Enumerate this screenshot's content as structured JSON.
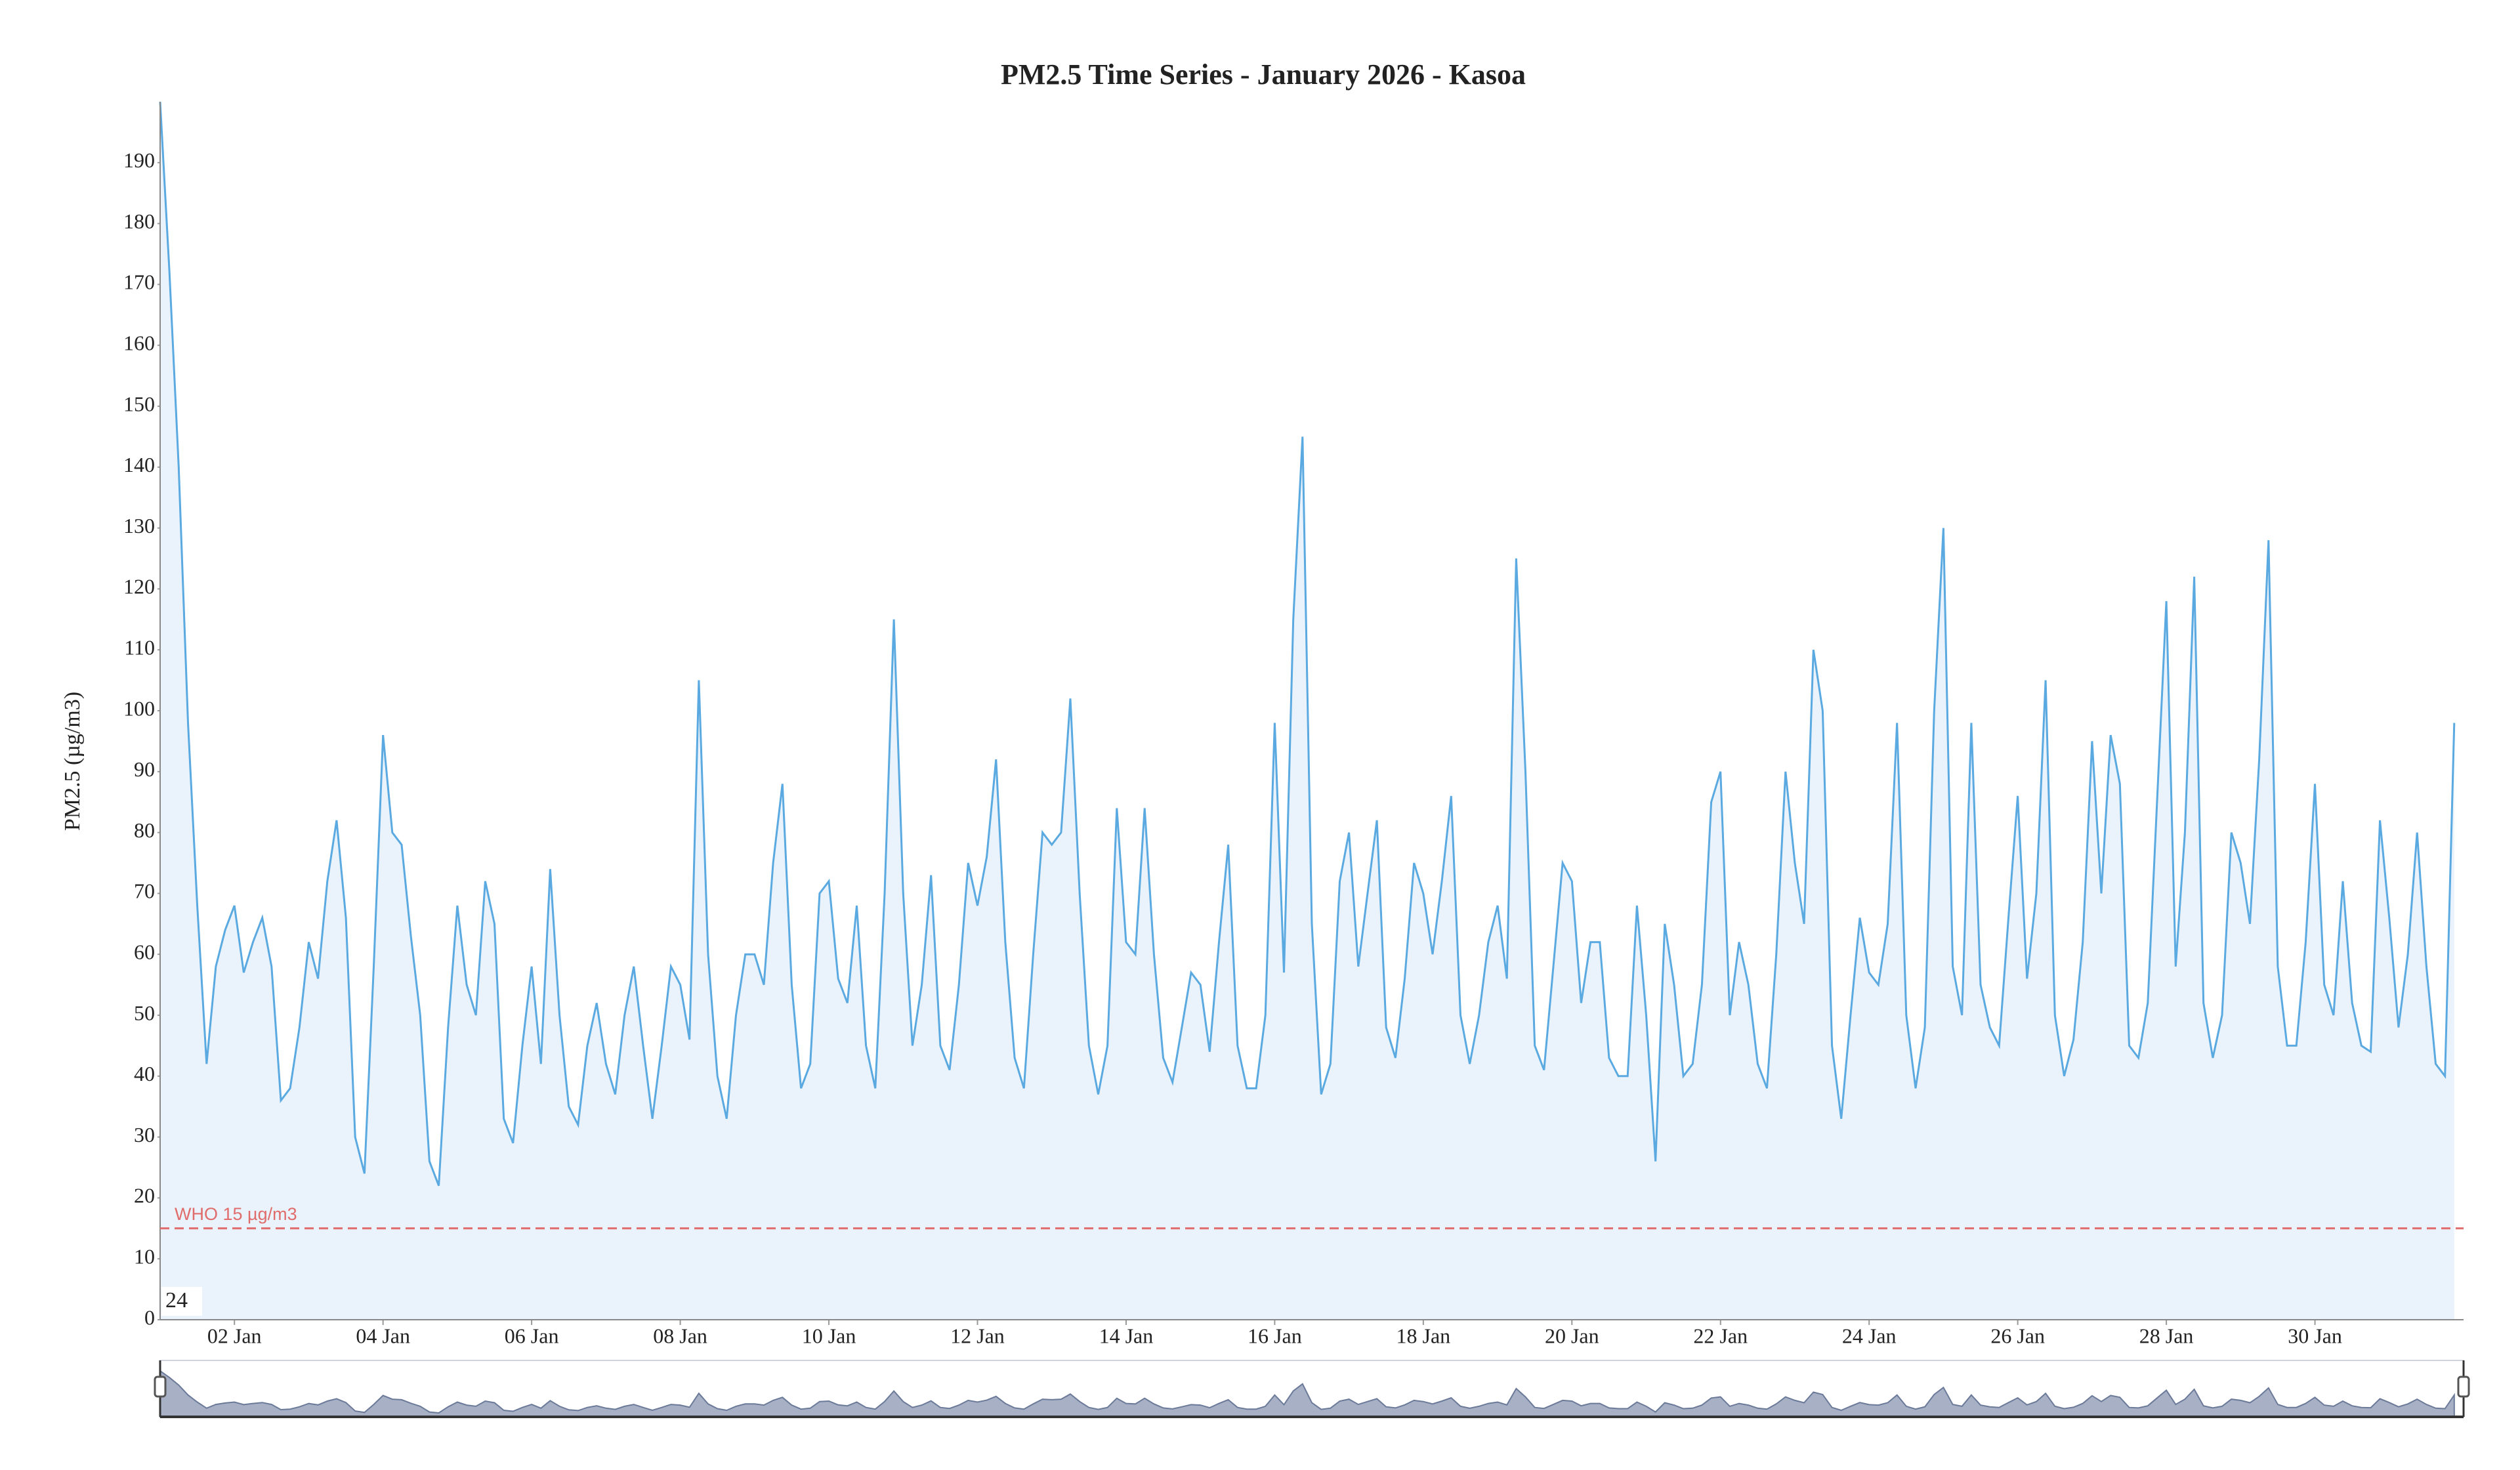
{
  "chart_data": {
    "type": "line",
    "title": "PM2.5 Time Series - January 2026 - Kasoa",
    "y_label": "PM2.5 (µg/m3)",
    "color": "#5aa9e0",
    "area_color": "#eaf3fb",
    "x": [
      1,
      1.125,
      1.25,
      1.375,
      1.5,
      1.625,
      1.75,
      1.875,
      2,
      2.125,
      2.25,
      2.375,
      2.5,
      2.625,
      2.75,
      2.875,
      3,
      3.125,
      3.25,
      3.375,
      3.5,
      3.625,
      3.75,
      3.875,
      4,
      4.125,
      4.25,
      4.375,
      4.5,
      4.625,
      4.75,
      4.875,
      5,
      5.125,
      5.25,
      5.375,
      5.5,
      5.625,
      5.75,
      5.875,
      6,
      6.125,
      6.25,
      6.375,
      6.5,
      6.625,
      6.75,
      6.875,
      7,
      7.125,
      7.25,
      7.375,
      7.5,
      7.625,
      7.75,
      7.875,
      8,
      8.125,
      8.25,
      8.375,
      8.5,
      8.625,
      8.75,
      8.875,
      9,
      9.125,
      9.25,
      9.375,
      9.5,
      9.625,
      9.75,
      9.875,
      10,
      10.125,
      10.25,
      10.375,
      10.5,
      10.625,
      10.75,
      10.875,
      11,
      11.125,
      11.25,
      11.375,
      11.5,
      11.625,
      11.75,
      11.875,
      12,
      12.125,
      12.25,
      12.375,
      12.5,
      12.625,
      12.75,
      12.875,
      13,
      13.125,
      13.25,
      13.375,
      13.5,
      13.625,
      13.75,
      13.875,
      14,
      14.125,
      14.25,
      14.375,
      14.5,
      14.625,
      14.75,
      14.875,
      15,
      15.125,
      15.25,
      15.375,
      15.5,
      15.625,
      15.75,
      15.875,
      16,
      16.125,
      16.25,
      16.375,
      16.5,
      16.625,
      16.75,
      16.875,
      17,
      17.125,
      17.25,
      17.375,
      17.5,
      17.625,
      17.75,
      17.875,
      18,
      18.125,
      18.25,
      18.375,
      18.5,
      18.625,
      18.75,
      18.875,
      19,
      19.125,
      19.25,
      19.375,
      19.5,
      19.625,
      19.75,
      19.875,
      20,
      20.125,
      20.25,
      20.375,
      20.5,
      20.625,
      20.75,
      20.875,
      21,
      21.125,
      21.25,
      21.375,
      21.5,
      21.625,
      21.75,
      21.875,
      22,
      22.125,
      22.25,
      22.375,
      22.5,
      22.625,
      22.75,
      22.875,
      23,
      23.125,
      23.25,
      23.375,
      23.5,
      23.625,
      23.75,
      23.875,
      24,
      24.125,
      24.25,
      24.375,
      24.5,
      24.625,
      24.75,
      24.875,
      25,
      25.125,
      25.25,
      25.375,
      25.5,
      25.625,
      25.75,
      25.875,
      26,
      26.125,
      26.25,
      26.375,
      26.5,
      26.625,
      26.75,
      26.875,
      27,
      27.125,
      27.25,
      27.375,
      27.5,
      27.625,
      27.75,
      27.875,
      28,
      28.125,
      28.25,
      28.375,
      28.5,
      28.625,
      28.75,
      28.875,
      29,
      29.125,
      29.25,
      29.375,
      29.5,
      29.625,
      29.75,
      29.875,
      30,
      30.125,
      30.25,
      30.375,
      30.5,
      30.625,
      30.75,
      30.875,
      31,
      31.125,
      31.25,
      31.375,
      31.5,
      31.625,
      31.75,
      31.875
    ],
    "values": [
      200,
      172,
      140,
      98,
      68,
      42,
      58,
      64,
      68,
      57,
      62,
      66,
      58,
      36,
      38,
      48,
      62,
      56,
      72,
      82,
      66,
      30,
      24,
      58,
      96,
      80,
      78,
      63,
      50,
      26,
      22,
      48,
      68,
      55,
      50,
      72,
      65,
      33,
      29,
      45,
      58,
      42,
      74,
      50,
      35,
      32,
      45,
      52,
      42,
      37,
      50,
      58,
      45,
      33,
      45,
      58,
      55,
      46,
      105,
      60,
      40,
      33,
      50,
      60,
      60,
      55,
      75,
      88,
      55,
      38,
      42,
      70,
      72,
      56,
      52,
      68,
      45,
      38,
      70,
      115,
      70,
      45,
      55,
      73,
      45,
      41,
      55,
      75,
      68,
      76,
      92,
      62,
      43,
      38,
      60,
      80,
      78,
      80,
      102,
      70,
      45,
      37,
      45,
      84,
      62,
      60,
      84,
      60,
      43,
      39,
      48,
      57,
      55,
      44,
      62,
      78,
      45,
      38,
      38,
      50,
      98,
      57,
      115,
      145,
      65,
      37,
      42,
      72,
      80,
      58,
      70,
      82,
      48,
      43,
      56,
      75,
      70,
      60,
      72,
      86,
      50,
      42,
      50,
      62,
      68,
      56,
      125,
      90,
      45,
      41,
      58,
      75,
      72,
      52,
      62,
      62,
      43,
      40,
      40,
      68,
      50,
      26,
      65,
      55,
      40,
      42,
      55,
      85,
      90,
      50,
      62,
      55,
      42,
      38,
      60,
      90,
      75,
      65,
      110,
      100,
      45,
      33,
      50,
      66,
      57,
      55,
      65,
      98,
      50,
      38,
      48,
      100,
      130,
      58,
      50,
      98,
      55,
      48,
      45,
      66,
      86,
      56,
      70,
      105,
      50,
      40,
      46,
      62,
      95,
      70,
      96,
      88,
      45,
      43,
      52,
      85,
      118,
      58,
      80,
      122,
      52,
      43,
      50,
      80,
      75,
      65,
      92,
      128,
      58,
      45,
      45,
      62,
      88,
      55,
      50,
      72,
      52,
      45,
      44,
      82,
      66,
      48,
      60,
      80,
      58,
      42,
      40,
      98
    ],
    "xlim": [
      1,
      32
    ],
    "xticks": [
      {
        "value": 2,
        "label": "02 Jan"
      },
      {
        "value": 4,
        "label": "04 Jan"
      },
      {
        "value": 6,
        "label": "06 Jan"
      },
      {
        "value": 8,
        "label": "08 Jan"
      },
      {
        "value": 10,
        "label": "10 Jan"
      },
      {
        "value": 12,
        "label": "12 Jan"
      },
      {
        "value": 14,
        "label": "14 Jan"
      },
      {
        "value": 16,
        "label": "16 Jan"
      },
      {
        "value": 18,
        "label": "18 Jan"
      },
      {
        "value": 20,
        "label": "20 Jan"
      },
      {
        "value": 22,
        "label": "22 Jan"
      },
      {
        "value": 24,
        "label": "24 Jan"
      },
      {
        "value": 26,
        "label": "26 Jan"
      },
      {
        "value": 28,
        "label": "28 Jan"
      },
      {
        "value": 30,
        "label": "30 Jan"
      }
    ],
    "ylim": [
      0,
      200
    ],
    "yticks": [
      0,
      10,
      20,
      30,
      40,
      50,
      60,
      70,
      80,
      90,
      100,
      110,
      120,
      130,
      140,
      150,
      160,
      170,
      180,
      190
    ],
    "reference_line": {
      "value": 15,
      "label": "WHO 15 µg/m3",
      "color": "#e06c6c"
    },
    "corner_label": "24"
  }
}
